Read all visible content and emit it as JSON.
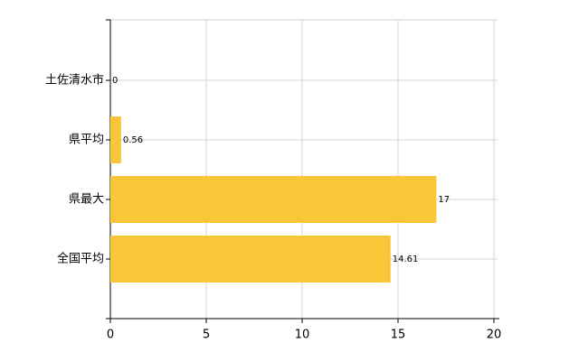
{
  "chart_data": {
    "type": "bar",
    "orientation": "horizontal",
    "categories": [
      "土佐清水市",
      "県平均",
      "県最大",
      "全国平均"
    ],
    "values": [
      0,
      0.56,
      17,
      14.61
    ],
    "color": "#f9c637",
    "xlim": [
      0,
      20
    ],
    "xticks": [
      0,
      5,
      10,
      15,
      20
    ],
    "grid": true
  }
}
